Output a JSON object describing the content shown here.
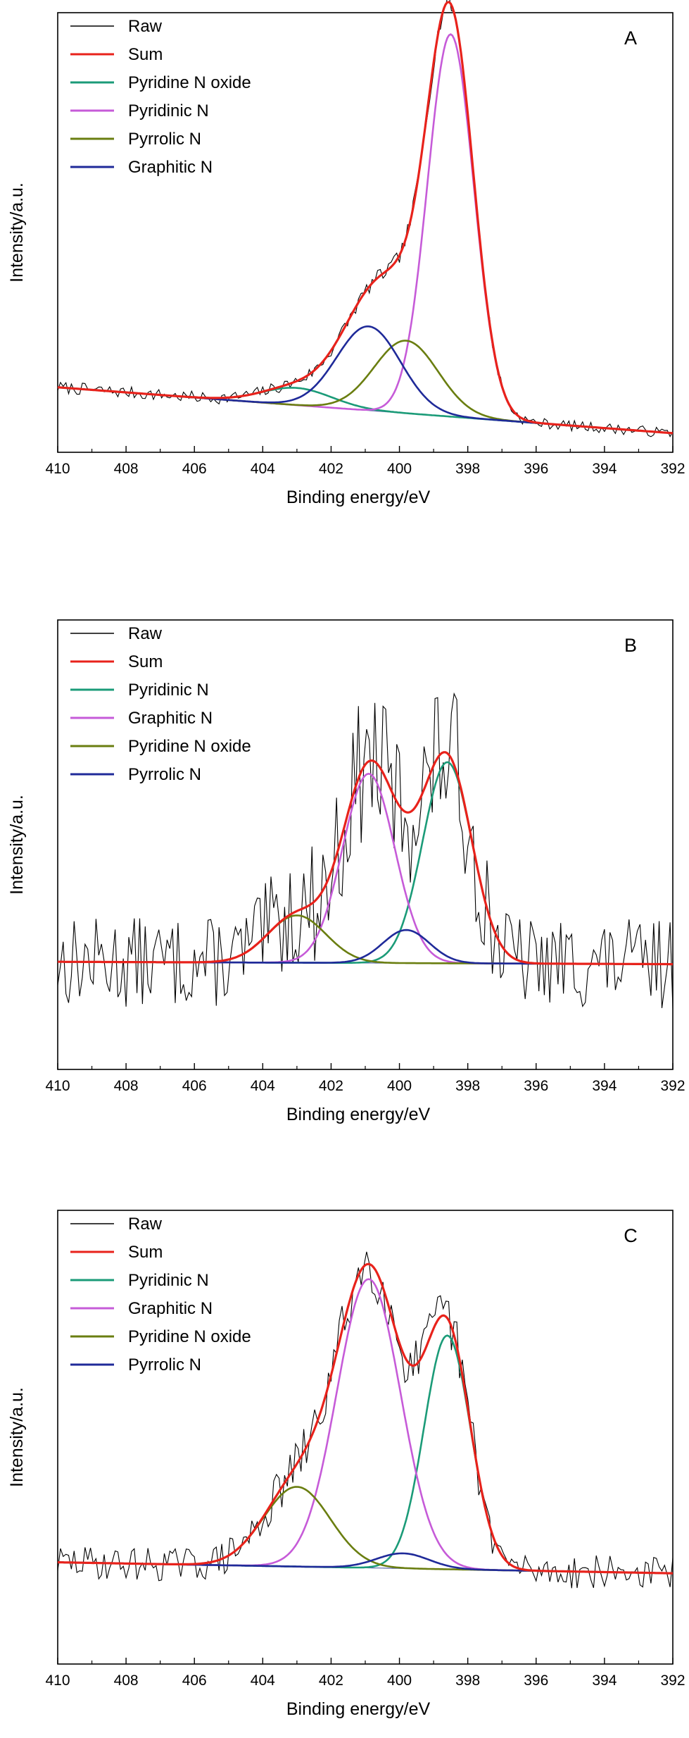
{
  "chart_data": [
    {
      "type": "line",
      "panel_label": "A",
      "xlabel": "Binding energy/eV",
      "ylabel": "Intensity/a.u.",
      "xlim": [
        410,
        392
      ],
      "x_reversed": true,
      "xticks": [
        "410",
        "408",
        "406",
        "404",
        "402",
        "400",
        "398",
        "396",
        "394",
        "392"
      ],
      "legend_position": "top-left",
      "baseline": {
        "left": 0.12,
        "right": 0.0
      },
      "ylim": [
        -0.05,
        1.1
      ],
      "noise_amplitude": 0.02,
      "noise_seed": 7,
      "raw_line": true,
      "series": [
        {
          "name": "Raw",
          "kind": "raw",
          "color": "#000000"
        },
        {
          "name": "Sum",
          "kind": "sum",
          "color": "#e8221b"
        },
        {
          "name": "Pyridine N oxide",
          "kind": "peak",
          "center": 403.0,
          "fwhm": 2.4,
          "height": 0.045,
          "color": "#1b9b78"
        },
        {
          "name": "Pyridinic N",
          "kind": "peak",
          "center": 398.5,
          "fwhm": 1.6,
          "height": 1.0,
          "color": "#c65bd8"
        },
        {
          "name": "Pyrrolic N",
          "kind": "peak",
          "center": 399.8,
          "fwhm": 2.2,
          "height": 0.19,
          "color": "#6a7e10"
        },
        {
          "name": "Graphitic N",
          "kind": "peak",
          "center": 400.9,
          "fwhm": 2.2,
          "height": 0.22,
          "color": "#1f2a99"
        }
      ]
    },
    {
      "type": "line",
      "panel_label": "B",
      "xlabel": "Binding energy/eV",
      "ylabel": "Intensity/a.u.",
      "xlim": [
        410,
        392
      ],
      "x_reversed": true,
      "xticks": [
        "410",
        "408",
        "406",
        "404",
        "402",
        "400",
        "398",
        "396",
        "394",
        "392"
      ],
      "legend_position": "top-left",
      "baseline": {
        "left": 0.005,
        "right": -0.005
      },
      "ylim": [
        -0.45,
        1.45
      ],
      "noise_amplitude": 0.28,
      "noise_seed": 13,
      "raw_line": true,
      "series": [
        {
          "name": "Raw",
          "kind": "raw",
          "color": "#000000"
        },
        {
          "name": "Sum",
          "kind": "sum",
          "color": "#e8221b"
        },
        {
          "name": "Pyridinic N",
          "kind": "peak",
          "center": 398.6,
          "fwhm": 1.7,
          "height": 0.85,
          "color": "#1b9b78"
        },
        {
          "name": "Graphitic N",
          "kind": "peak",
          "center": 400.9,
          "fwhm": 1.8,
          "height": 0.8,
          "color": "#c65bd8"
        },
        {
          "name": "Pyridine N oxide",
          "kind": "peak",
          "center": 403.0,
          "fwhm": 2.0,
          "height": 0.2,
          "color": "#6a7e10"
        },
        {
          "name": "Pyrrolic N",
          "kind": "peak",
          "center": 399.8,
          "fwhm": 1.6,
          "height": 0.14,
          "color": "#1f2a99"
        }
      ]
    },
    {
      "type": "line",
      "panel_label": "C",
      "xlabel": "Binding energy/eV",
      "ylabel": "Intensity/a.u.",
      "xlim": [
        410,
        392
      ],
      "x_reversed": true,
      "xticks": [
        "410",
        "408",
        "406",
        "404",
        "402",
        "400",
        "398",
        "396",
        "394",
        "392"
      ],
      "legend_position": "top-left",
      "baseline": {
        "left": 0.02,
        "right": -0.02
      },
      "ylim": [
        -0.35,
        1.3
      ],
      "noise_amplitude": 0.09,
      "noise_seed": 29,
      "raw_line": true,
      "series": [
        {
          "name": "Raw",
          "kind": "raw",
          "color": "#000000"
        },
        {
          "name": "Sum",
          "kind": "sum",
          "color": "#e8221b"
        },
        {
          "name": "Pyridinic N",
          "kind": "peak",
          "center": 398.6,
          "fwhm": 1.6,
          "height": 0.85,
          "color": "#1b9b78"
        },
        {
          "name": "Graphitic N",
          "kind": "peak",
          "center": 400.9,
          "fwhm": 2.2,
          "height": 1.05,
          "color": "#c65bd8"
        },
        {
          "name": "Pyridine N oxide",
          "kind": "peak",
          "center": 403.0,
          "fwhm": 2.3,
          "height": 0.29,
          "color": "#6a7e10"
        },
        {
          "name": "Pyrrolic N",
          "kind": "peak",
          "center": 399.9,
          "fwhm": 1.8,
          "height": 0.055,
          "color": "#1f2a99"
        }
      ]
    }
  ]
}
